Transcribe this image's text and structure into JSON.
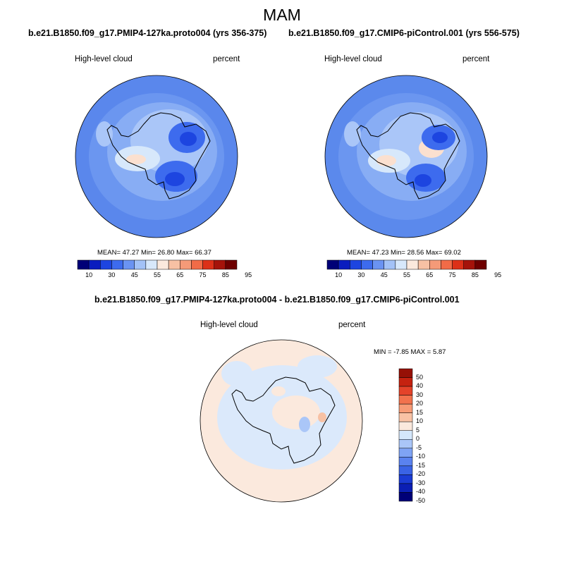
{
  "season_title": "MAM",
  "colors": {
    "levels_abs": [
      "#000077",
      "#0a1dbf",
      "#1d45e0",
      "#3d6bee",
      "#6a93f2",
      "#a3c2f7",
      "#d7e8fb",
      "#fbe9dd",
      "#f7c1a4",
      "#f59a78",
      "#f16b47",
      "#dc3018",
      "#a5130a",
      "#6e0000"
    ],
    "levels_diff": [
      "#000077",
      "#0b1fb4",
      "#1b3cd4",
      "#3a63e5",
      "#5a82ef",
      "#7fa3f4",
      "#aac6f8",
      "#d4e7fb",
      "#fbe9dd",
      "#f9c2a5",
      "#f79b76",
      "#f2724d",
      "#e4432a",
      "#c52210",
      "#961006"
    ],
    "coastline": "#000000",
    "ocean_fill_a": "#5a87ec",
    "ocean_fill_b": "#5b89ec",
    "diff_fill": "#dbe9fb"
  },
  "panels": [
    {
      "title": "b.e21.B1850.f09_g17.PMIP4-127ka.proto004 (yrs 356-375)",
      "variable": "High-level cloud",
      "units": "percent",
      "stats": "MEAN=  47.27  Min=  26.80  Max=  66.37"
    },
    {
      "title": "b.e21.B1850.f09_g17.CMIP6-piControl.001 (yrs 556-575)",
      "variable": "High-level cloud",
      "units": "percent",
      "stats": "MEAN=  47.23  Min=  28.56  Max=  69.02"
    }
  ],
  "diff_panel": {
    "title": "b.e21.B1850.f09_g17.PMIP4-127ka.proto004 - b.e21.B1850.f09_g17.CMIP6-piControl.001",
    "variable": "High-level cloud",
    "units": "percent",
    "stats": "MIN =  -7.85 MAX =   5.87"
  },
  "chart_data": [
    {
      "type": "heatmap",
      "title": "b.e21.B1850.f09_g17.PMIP4-127ka.proto004 (yrs 356-375)",
      "projection": "south-polar-stereographic",
      "variable": "High-level cloud",
      "units": "percent",
      "mean": 47.27,
      "min": 26.8,
      "max": 66.37,
      "colorbar_ticks": [
        "10",
        "30",
        "45",
        "55",
        "65",
        "75",
        "85",
        "95"
      ]
    },
    {
      "type": "heatmap",
      "title": "b.e21.B1850.f09_g17.CMIP6-piControl.001 (yrs 556-575)",
      "projection": "south-polar-stereographic",
      "variable": "High-level cloud",
      "units": "percent",
      "mean": 47.23,
      "min": 28.56,
      "max": 69.02,
      "colorbar_ticks": [
        "10",
        "30",
        "45",
        "55",
        "65",
        "75",
        "85",
        "95"
      ]
    },
    {
      "type": "heatmap",
      "title": "b.e21.B1850.f09_g17.PMIP4-127ka.proto004 - b.e21.B1850.f09_g17.CMIP6-piControl.001",
      "projection": "south-polar-stereographic",
      "variable": "High-level cloud",
      "units": "percent",
      "min": -7.85,
      "max": 5.87,
      "colorbar_ticks": [
        "50",
        "40",
        "30",
        "20",
        "15",
        "10",
        "5",
        "0",
        "-5",
        "-10",
        "-15",
        "-20",
        "-30",
        "-40",
        "-50"
      ]
    }
  ]
}
